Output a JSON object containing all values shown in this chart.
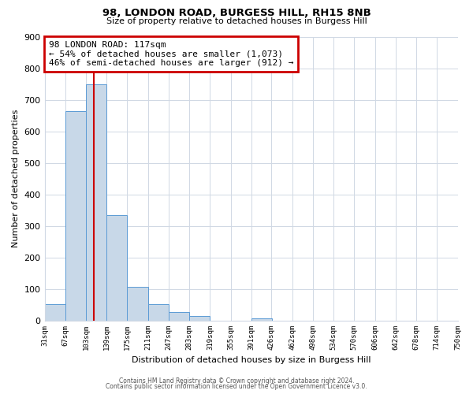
{
  "title": "98, LONDON ROAD, BURGESS HILL, RH15 8NB",
  "subtitle": "Size of property relative to detached houses in Burgess Hill",
  "xlabel": "Distribution of detached houses by size in Burgess Hill",
  "ylabel": "Number of detached properties",
  "footer1": "Contains HM Land Registry data © Crown copyright and database right 2024.",
  "footer2": "Contains public sector information licensed under the Open Government Licence v3.0.",
  "annotation_line1": "98 LONDON ROAD: 117sqm",
  "annotation_line2": "← 54% of detached houses are smaller (1,073)",
  "annotation_line3": "46% of semi-detached houses are larger (912) →",
  "bar_edges": [
    31,
    67,
    103,
    139,
    175,
    211,
    247,
    283,
    319,
    355,
    391,
    426,
    462,
    498,
    534,
    570,
    606,
    642,
    678,
    714,
    750
  ],
  "bar_heights": [
    52,
    665,
    750,
    335,
    107,
    52,
    27,
    15,
    0,
    0,
    8,
    0,
    0,
    0,
    0,
    0,
    0,
    0,
    0,
    0
  ],
  "bar_color": "#c8d8e8",
  "bar_edge_color": "#5b9bd5",
  "vline_x": 117,
  "vline_color": "#cc0000",
  "annotation_box_color": "#cc0000",
  "annotation_text_color": "#000000",
  "ylim": [
    0,
    900
  ],
  "xlim": [
    31,
    750
  ],
  "yticks": [
    0,
    100,
    200,
    300,
    400,
    500,
    600,
    700,
    800,
    900
  ],
  "xtick_labels": [
    "31sqm",
    "67sqm",
    "103sqm",
    "139sqm",
    "175sqm",
    "211sqm",
    "247sqm",
    "283sqm",
    "319sqm",
    "355sqm",
    "391sqm",
    "426sqm",
    "462sqm",
    "498sqm",
    "534sqm",
    "570sqm",
    "606sqm",
    "642sqm",
    "678sqm",
    "714sqm",
    "750sqm"
  ],
  "bg_color": "#ffffff",
  "grid_color": "#d0d8e4"
}
